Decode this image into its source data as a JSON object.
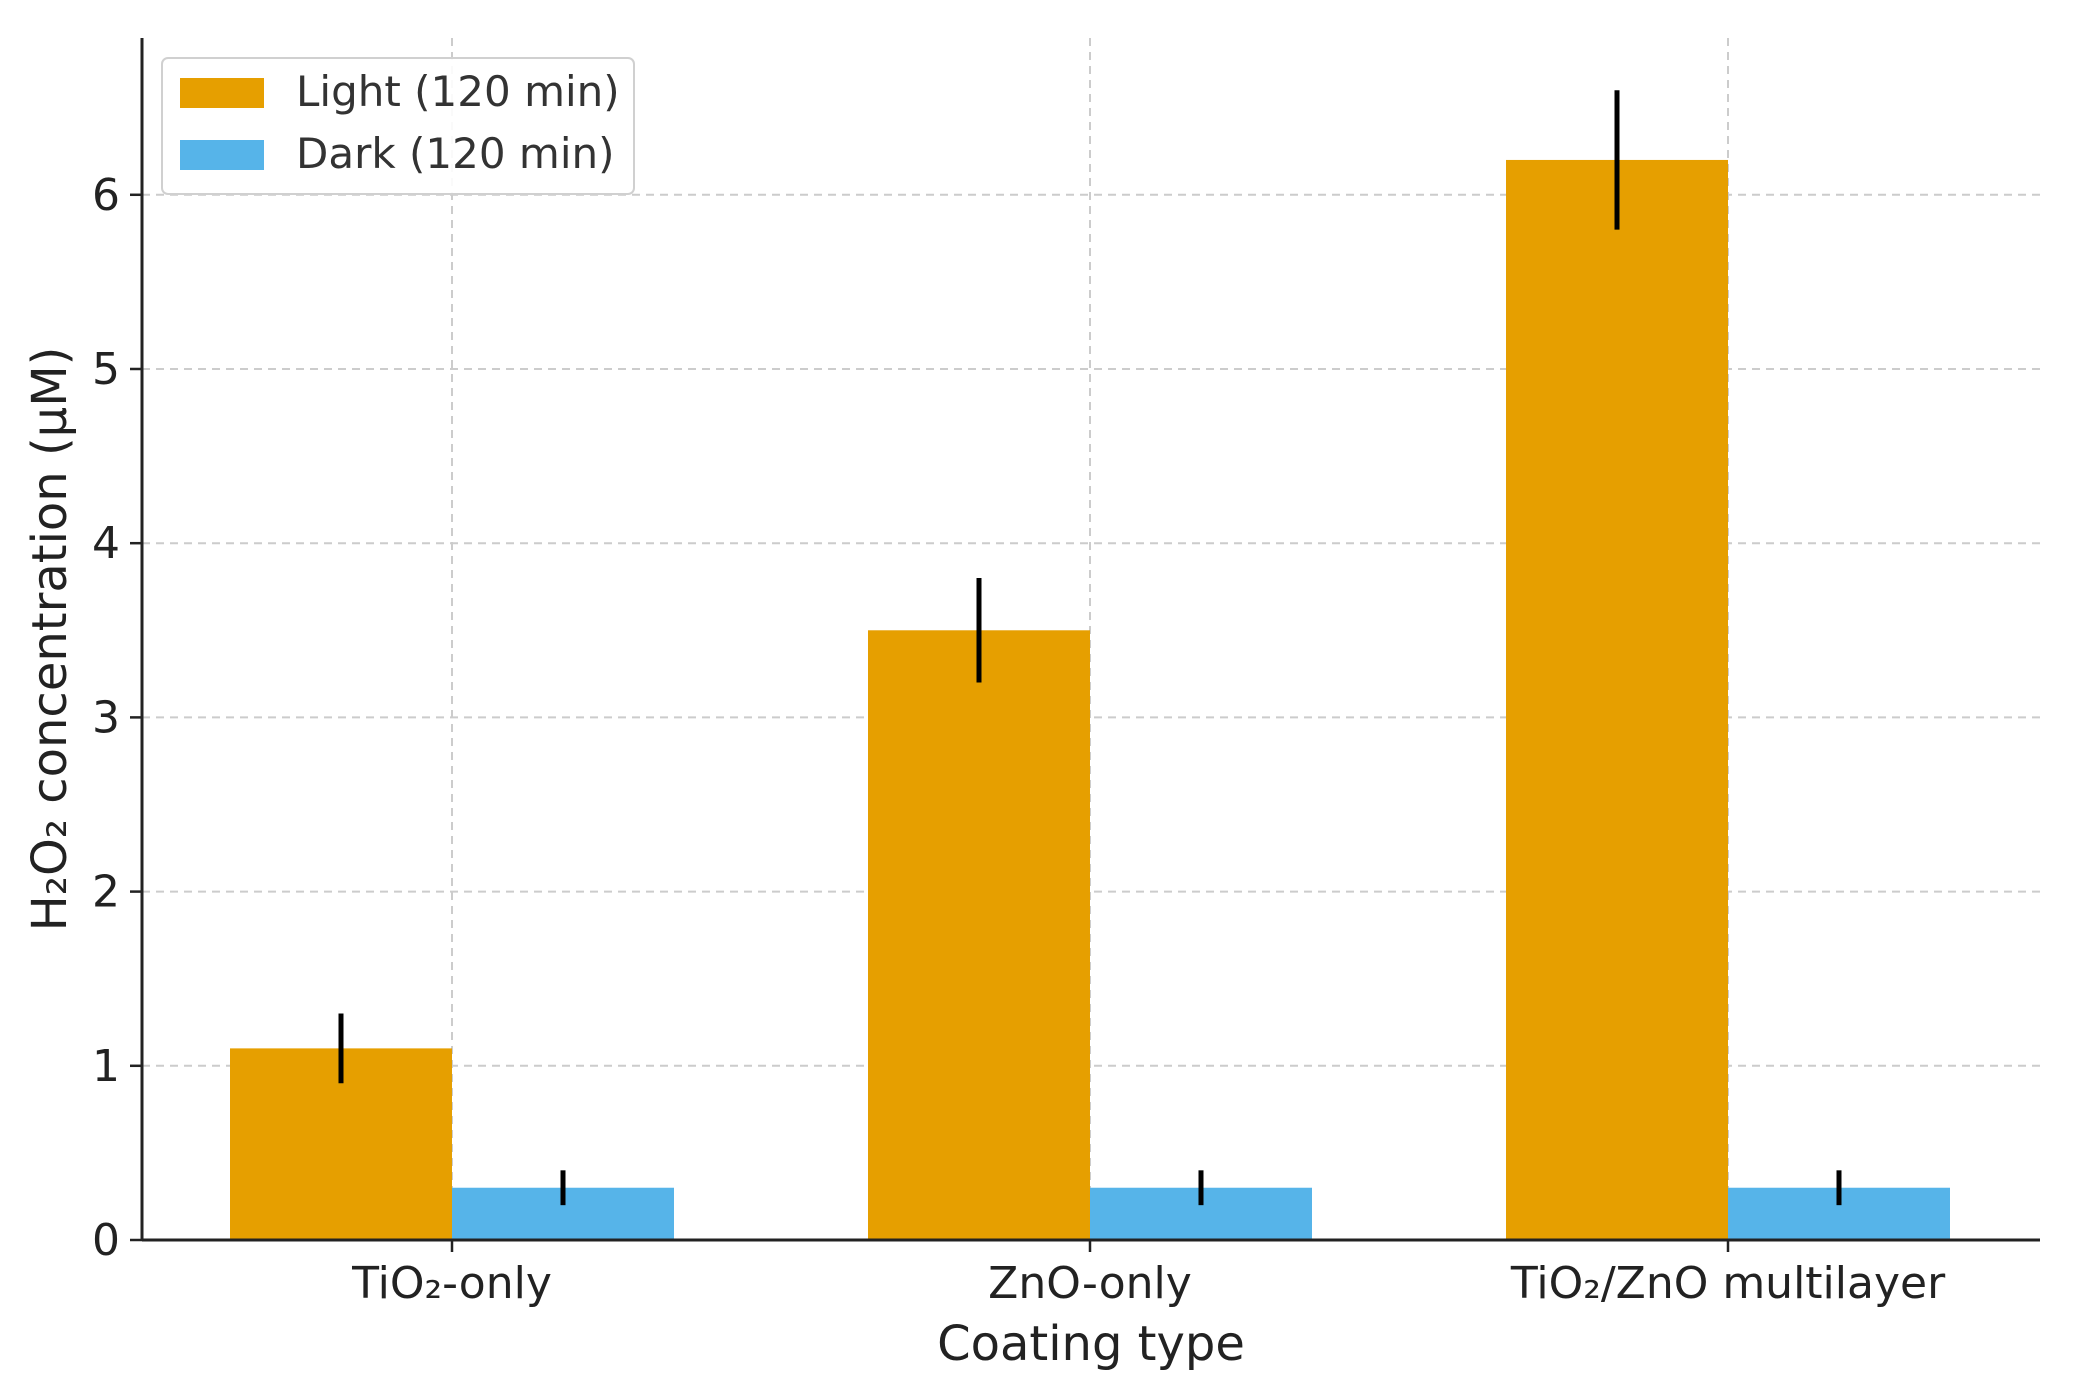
{
  "chart_data": {
    "type": "bar",
    "categories": [
      "TiO₂-only",
      "ZnO-only",
      "TiO₂/ZnO multilayer"
    ],
    "series": [
      {
        "name": "Light (120 min)",
        "color": "#E69F00",
        "values": [
          1.1,
          3.5,
          6.2
        ],
        "errors": [
          0.2,
          0.3,
          0.4
        ]
      },
      {
        "name": "Dark (120 min)",
        "color": "#56B4E9",
        "values": [
          0.3,
          0.3,
          0.3
        ],
        "errors": [
          0.1,
          0.1,
          0.1
        ]
      }
    ],
    "xlabel": "Coating type",
    "ylabel": "H₂O₂ concentration (μM)",
    "ylim": [
      0,
      6.9
    ],
    "yticks": [
      0,
      1,
      2,
      3,
      4,
      5,
      6
    ],
    "grid": true,
    "legend_position": "top-left"
  }
}
